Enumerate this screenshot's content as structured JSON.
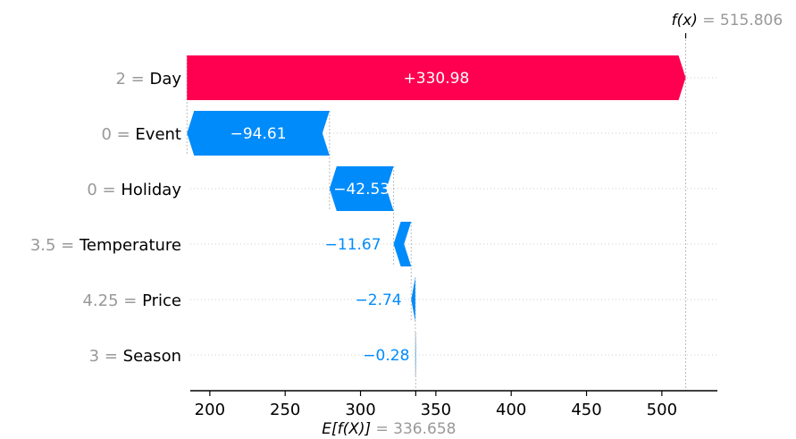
{
  "chart_data": {
    "type": "waterfall",
    "xlim": [
      182,
      535
    ],
    "x_ticks": [
      200,
      250,
      300,
      350,
      400,
      450,
      500
    ],
    "base_value": 336.658,
    "base_value_text": "336.658",
    "base_label": "E[f(X)]",
    "output_value": 515.806,
    "output_value_text": "515.806",
    "output_label": "f(x)",
    "colors": {
      "positive": "#ff0051",
      "negative": "#008bfb"
    },
    "features": [
      {
        "value": "2",
        "name": "Day",
        "contribution": 330.98,
        "label": "+330.98"
      },
      {
        "value": "0",
        "name": "Event",
        "contribution": -94.61,
        "label": "−94.61"
      },
      {
        "value": "0",
        "name": "Holiday",
        "contribution": -42.53,
        "label": "−42.53"
      },
      {
        "value": "3.5",
        "name": "Temperature",
        "contribution": -11.67,
        "label": "−11.67"
      },
      {
        "value": "4.25",
        "name": "Price",
        "contribution": -2.74,
        "label": "−2.74"
      },
      {
        "value": "3",
        "name": "Season",
        "contribution": -0.28,
        "label": "−0.28"
      }
    ]
  }
}
